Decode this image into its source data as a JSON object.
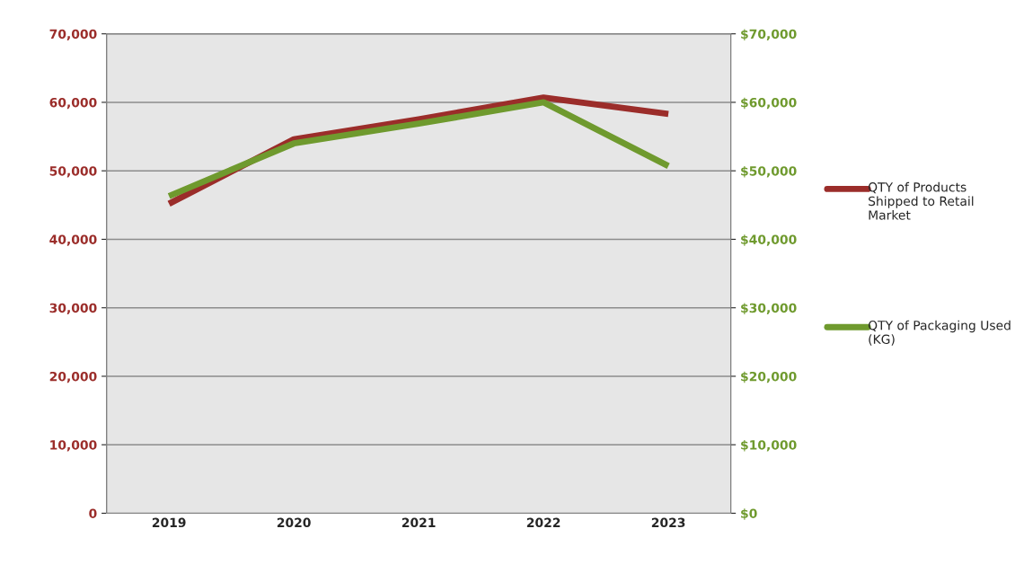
{
  "chart_data": {
    "type": "line",
    "categories": [
      "2019",
      "2020",
      "2021",
      "2022",
      "2023"
    ],
    "series": [
      {
        "name": "QTY of Products Shipped to Retail Market",
        "color": "#9b2d2a",
        "values": [
          45200,
          54600,
          57500,
          60700,
          58300
        ]
      },
      {
        "name": "QTY of Packaging Used (KG)",
        "color": "#6f9a2e",
        "values": [
          46300,
          54000,
          56900,
          60000,
          50700
        ],
        "axis": "y2"
      }
    ],
    "ylim": [
      0,
      70000
    ],
    "yticks": [
      {
        "value": 0,
        "label": "0"
      },
      {
        "value": 10000,
        "label": "10,000"
      },
      {
        "value": 20000,
        "label": "20,000"
      },
      {
        "value": 30000,
        "label": "30,000"
      },
      {
        "value": 40000,
        "label": "40,000"
      },
      {
        "value": 50000,
        "label": "50,000"
      },
      {
        "value": 60000,
        "label": "60,000"
      },
      {
        "value": 70000,
        "label": "70,000"
      }
    ],
    "y2lim": [
      0,
      70000
    ],
    "y2ticks": [
      {
        "value": 0,
        "label": "$0"
      },
      {
        "value": 10000,
        "label": "$10,000"
      },
      {
        "value": 20000,
        "label": "$20,000"
      },
      {
        "value": 30000,
        "label": "$30,000"
      },
      {
        "value": 40000,
        "label": "$40,000"
      },
      {
        "value": 50000,
        "label": "$50,000"
      },
      {
        "value": 60000,
        "label": "$60,000"
      },
      {
        "value": 70000,
        "label": "$70,000"
      }
    ],
    "grid": "y",
    "legend": "right",
    "marker": "none",
    "line_style": "solid"
  }
}
